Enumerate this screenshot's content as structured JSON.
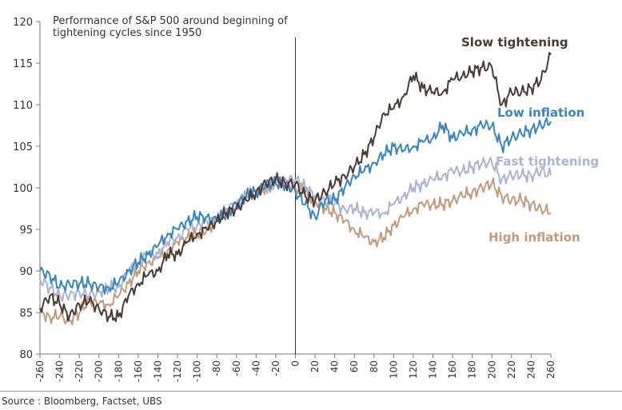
{
  "source": "Source : Bloomberg, Factset, UBS",
  "chart_data": {
    "type": "line",
    "title_lines": [
      "Performance of S&P 500 around beginning of",
      "tightening cycles since 1950"
    ],
    "xlim": [
      -260,
      260
    ],
    "ylim": [
      80,
      120
    ],
    "x_ticks": [
      -260,
      -240,
      -220,
      -200,
      -180,
      -160,
      -140,
      -120,
      -100,
      -80,
      -60,
      -40,
      -20,
      0,
      20,
      40,
      60,
      80,
      100,
      120,
      140,
      160,
      180,
      200,
      220,
      240,
      260
    ],
    "y_ticks": [
      80,
      85,
      90,
      95,
      100,
      105,
      110,
      115,
      120
    ],
    "grid": false,
    "vertical_marker_x": 0,
    "legend": "inline labels at line ends",
    "series": [
      {
        "name": "Slow tightening",
        "color": "#4a3a32",
        "points": [
          [
            -260,
            85.5
          ],
          [
            -250,
            87
          ],
          [
            -240,
            86
          ],
          [
            -230,
            84.5
          ],
          [
            -220,
            86
          ],
          [
            -210,
            86.3
          ],
          [
            -200,
            85.5
          ],
          [
            -190,
            84.5
          ],
          [
            -180,
            84.5
          ],
          [
            -170,
            87
          ],
          [
            -160,
            88.5
          ],
          [
            -150,
            89.5
          ],
          [
            -140,
            90
          ],
          [
            -130,
            92
          ],
          [
            -120,
            92
          ],
          [
            -110,
            93.5
          ],
          [
            -100,
            94.5
          ],
          [
            -90,
            95
          ],
          [
            -80,
            96
          ],
          [
            -70,
            97
          ],
          [
            -60,
            97.5
          ],
          [
            -50,
            98.5
          ],
          [
            -40,
            99.5
          ],
          [
            -30,
            100.5
          ],
          [
            -20,
            101
          ],
          [
            -10,
            100.5
          ],
          [
            0,
            100.5
          ],
          [
            10,
            99
          ],
          [
            20,
            98.5
          ],
          [
            30,
            99.5
          ],
          [
            40,
            100.5
          ],
          [
            50,
            101.5
          ],
          [
            60,
            102.5
          ],
          [
            70,
            104
          ],
          [
            80,
            106
          ],
          [
            90,
            109
          ],
          [
            100,
            109.5
          ],
          [
            110,
            111
          ],
          [
            120,
            113.5
          ],
          [
            130,
            112
          ],
          [
            140,
            111.5
          ],
          [
            150,
            111.5
          ],
          [
            160,
            113
          ],
          [
            170,
            113.5
          ],
          [
            180,
            114
          ],
          [
            190,
            114.5
          ],
          [
            200,
            114.5
          ],
          [
            210,
            110
          ],
          [
            220,
            111.5
          ],
          [
            230,
            111.5
          ],
          [
            240,
            112
          ],
          [
            250,
            113
          ],
          [
            260,
            116
          ]
        ]
      },
      {
        "name": "Low inflation",
        "color": "#3a85c0",
        "points": [
          [
            -260,
            90
          ],
          [
            -250,
            89.5
          ],
          [
            -240,
            88
          ],
          [
            -230,
            88.5
          ],
          [
            -220,
            88.5
          ],
          [
            -210,
            88.5
          ],
          [
            -200,
            88
          ],
          [
            -190,
            88
          ],
          [
            -180,
            88.5
          ],
          [
            -170,
            90
          ],
          [
            -160,
            91
          ],
          [
            -150,
            92
          ],
          [
            -140,
            93
          ],
          [
            -130,
            94.5
          ],
          [
            -120,
            95
          ],
          [
            -110,
            96
          ],
          [
            -100,
            96.5
          ],
          [
            -90,
            96.5
          ],
          [
            -80,
            96
          ],
          [
            -70,
            97
          ],
          [
            -60,
            98
          ],
          [
            -50,
            99
          ],
          [
            -40,
            99.5
          ],
          [
            -30,
            100.5
          ],
          [
            -20,
            100.5
          ],
          [
            -10,
            100.5
          ],
          [
            0,
            99.5
          ],
          [
            10,
            98
          ],
          [
            20,
            96.5
          ],
          [
            30,
            98.5
          ],
          [
            40,
            98.5
          ],
          [
            50,
            100
          ],
          [
            60,
            101.5
          ],
          [
            70,
            102
          ],
          [
            80,
            103
          ],
          [
            90,
            104
          ],
          [
            100,
            105
          ],
          [
            110,
            104.5
          ],
          [
            120,
            105
          ],
          [
            130,
            105.5
          ],
          [
            140,
            106
          ],
          [
            150,
            107.5
          ],
          [
            160,
            106
          ],
          [
            170,
            106.5
          ],
          [
            180,
            107
          ],
          [
            190,
            107.5
          ],
          [
            200,
            107.5
          ],
          [
            210,
            105
          ],
          [
            220,
            106
          ],
          [
            230,
            106.5
          ],
          [
            240,
            107
          ],
          [
            250,
            107.5
          ],
          [
            260,
            108
          ]
        ]
      },
      {
        "name": "Fast tightening",
        "color": "#a9b4d0",
        "points": [
          [
            -260,
            89
          ],
          [
            -250,
            88
          ],
          [
            -240,
            87
          ],
          [
            -230,
            87
          ],
          [
            -220,
            87.5
          ],
          [
            -210,
            87
          ],
          [
            -200,
            87.5
          ],
          [
            -190,
            88
          ],
          [
            -180,
            88
          ],
          [
            -170,
            90
          ],
          [
            -160,
            91
          ],
          [
            -150,
            92
          ],
          [
            -140,
            92
          ],
          [
            -130,
            93.5
          ],
          [
            -120,
            94
          ],
          [
            -110,
            95
          ],
          [
            -100,
            95.5
          ],
          [
            -90,
            96
          ],
          [
            -80,
            96
          ],
          [
            -70,
            97.5
          ],
          [
            -60,
            98
          ],
          [
            -50,
            99
          ],
          [
            -40,
            99.5
          ],
          [
            -30,
            100
          ],
          [
            -20,
            100.5
          ],
          [
            -10,
            101
          ],
          [
            0,
            101
          ],
          [
            10,
            100
          ],
          [
            20,
            99
          ],
          [
            30,
            98.5
          ],
          [
            40,
            98
          ],
          [
            50,
            97.5
          ],
          [
            60,
            97.5
          ],
          [
            70,
            97
          ],
          [
            80,
            97
          ],
          [
            90,
            97
          ],
          [
            100,
            98
          ],
          [
            110,
            99
          ],
          [
            120,
            100
          ],
          [
            130,
            100.5
          ],
          [
            140,
            101
          ],
          [
            150,
            101.5
          ],
          [
            160,
            102
          ],
          [
            170,
            102
          ],
          [
            180,
            102.5
          ],
          [
            190,
            103
          ],
          [
            200,
            103
          ],
          [
            210,
            101
          ],
          [
            220,
            101.5
          ],
          [
            230,
            101.5
          ],
          [
            240,
            101.5
          ],
          [
            250,
            102
          ],
          [
            260,
            101.5
          ]
        ]
      },
      {
        "name": "High inflation",
        "color": "#c49a7c",
        "points": [
          [
            -260,
            85
          ],
          [
            -250,
            84.5
          ],
          [
            -240,
            84.5
          ],
          [
            -230,
            84
          ],
          [
            -220,
            85
          ],
          [
            -210,
            86.5
          ],
          [
            -200,
            86
          ],
          [
            -190,
            86
          ],
          [
            -180,
            87
          ],
          [
            -170,
            88.5
          ],
          [
            -160,
            90
          ],
          [
            -150,
            91
          ],
          [
            -140,
            91.5
          ],
          [
            -130,
            92.5
          ],
          [
            -120,
            93.5
          ],
          [
            -110,
            94
          ],
          [
            -100,
            94.5
          ],
          [
            -90,
            95
          ],
          [
            -80,
            96
          ],
          [
            -70,
            97
          ],
          [
            -60,
            98
          ],
          [
            -50,
            99
          ],
          [
            -40,
            99.5
          ],
          [
            -30,
            100
          ],
          [
            -20,
            100.5
          ],
          [
            -10,
            100.5
          ],
          [
            0,
            100
          ],
          [
            10,
            99.5
          ],
          [
            20,
            98.5
          ],
          [
            30,
            97.5
          ],
          [
            40,
            97
          ],
          [
            50,
            96
          ],
          [
            60,
            95
          ],
          [
            70,
            94
          ],
          [
            80,
            93.5
          ],
          [
            90,
            94
          ],
          [
            100,
            95.5
          ],
          [
            110,
            96.5
          ],
          [
            120,
            97.5
          ],
          [
            130,
            98
          ],
          [
            140,
            98
          ],
          [
            150,
            98
          ],
          [
            160,
            98.5
          ],
          [
            170,
            99
          ],
          [
            180,
            99.5
          ],
          [
            190,
            100
          ],
          [
            200,
            100.5
          ],
          [
            210,
            99
          ],
          [
            220,
            98.5
          ],
          [
            230,
            98.5
          ],
          [
            240,
            98
          ],
          [
            250,
            97.5
          ],
          [
            260,
            97
          ]
        ]
      }
    ]
  }
}
